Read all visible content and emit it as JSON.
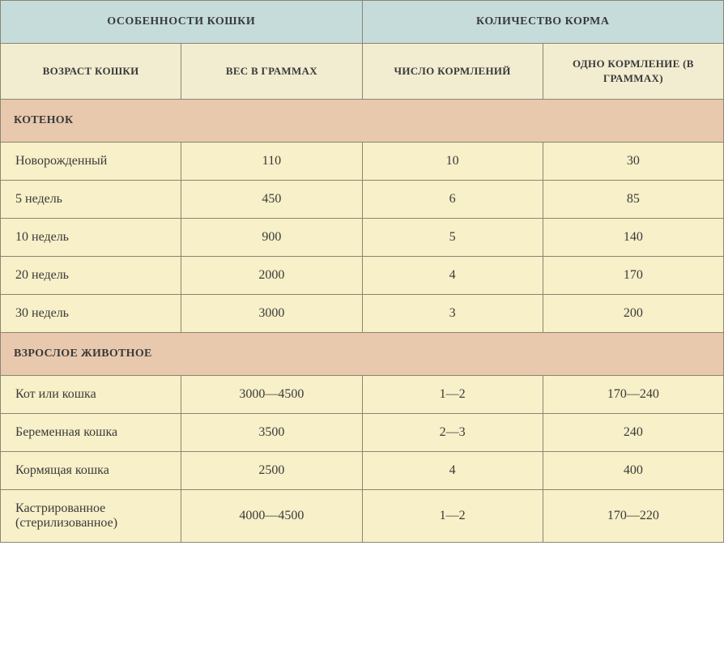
{
  "table": {
    "header1": {
      "cat_features": "ОСОБЕННОСТИ КОШКИ",
      "food_amount": "КОЛИЧЕСТВО КОРМА"
    },
    "header2": {
      "cat_age": "ВОЗРАСТ КОШКИ",
      "weight_grams": "ВЕС В ГРАММАХ",
      "feedings_count": "ЧИСЛО КОРМЛЕНИЙ",
      "one_feeding": "ОДНО КОРМЛЕНИЕ (В ГРАММАХ)"
    },
    "sections": [
      {
        "title": "КОТЕНОК",
        "rows": [
          {
            "age": "Новорожденный",
            "weight": "110",
            "feedings": "10",
            "portion": "30"
          },
          {
            "age": "5 недель",
            "weight": "450",
            "feedings": "6",
            "portion": "85"
          },
          {
            "age": "10 недель",
            "weight": "900",
            "feedings": "5",
            "portion": "140"
          },
          {
            "age": "20 недель",
            "weight": "2000",
            "feedings": "4",
            "portion": "170"
          },
          {
            "age": "30 недель",
            "weight": "3000",
            "feedings": "3",
            "portion": "200"
          }
        ]
      },
      {
        "title": "ВЗРОСЛОЕ ЖИВОТНОЕ",
        "rows": [
          {
            "age": "Кот или кошка",
            "weight": "3000—4500",
            "feedings": "1—2",
            "portion": "170—240"
          },
          {
            "age": "Беременная кошка",
            "weight": "3500",
            "feedings": "2—3",
            "portion": "240"
          },
          {
            "age": "Кормящая кошка",
            "weight": "2500",
            "feedings": "4",
            "portion": "400"
          },
          {
            "age": "Кастрированное (стерилизованное)",
            "weight": "4000—4500",
            "feedings": "1—2",
            "portion": "170—220"
          }
        ]
      }
    ],
    "colors": {
      "header1_bg": "#c5dcdb",
      "header2_bg": "#f2edd0",
      "section_bg": "#e8c9ad",
      "data_bg": "#f7f0c8",
      "border": "#8a8572",
      "text": "#3a3a3a"
    }
  }
}
